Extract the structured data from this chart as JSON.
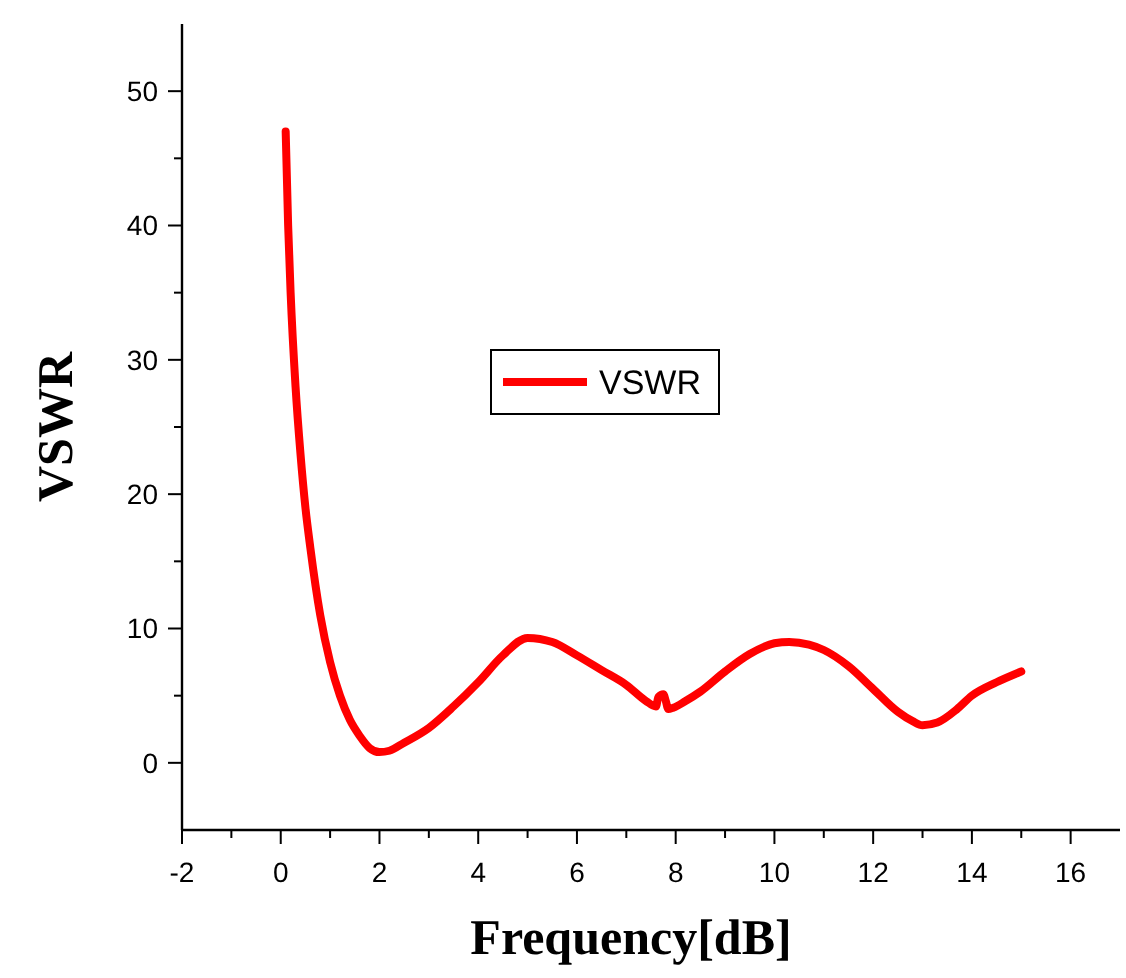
{
  "chart_data": {
    "type": "line",
    "xlabel": "Frequency[dB]",
    "ylabel": "VSWR",
    "xlim": [
      -2,
      17
    ],
    "xticks": [
      -2,
      0,
      2,
      4,
      6,
      8,
      10,
      12,
      14,
      16
    ],
    "ylim": [
      -5,
      55
    ],
    "yticks": [
      0,
      10,
      20,
      30,
      40,
      50
    ],
    "grid": false,
    "legend": "center",
    "marker": "none",
    "line_style": "solid",
    "series": [
      {
        "name": "VSWR",
        "color": "#ff0000",
        "x": [
          0.1,
          0.15,
          0.2,
          0.3,
          0.4,
          0.5,
          0.6,
          0.8,
          1.0,
          1.2,
          1.4,
          1.6,
          1.8,
          2.0,
          2.2,
          2.5,
          3,
          3.5,
          4,
          4.5,
          5,
          5.5,
          6,
          6.5,
          7,
          7.4,
          7.6,
          7.65,
          7.75,
          7.8,
          7.85,
          7.95,
          8.2,
          8.5,
          9,
          9.5,
          10,
          10.3,
          10.7,
          11,
          11.5,
          12,
          12.5,
          12.8,
          13,
          13.3,
          13.7,
          14,
          14.5,
          15
        ],
        "values": [
          47,
          40,
          35,
          28,
          23,
          19,
          16,
          11,
          7.5,
          5,
          3.2,
          2,
          1.1,
          0.8,
          0.9,
          1.5,
          2.6,
          4.2,
          6,
          8,
          9.3,
          9,
          8,
          6.9,
          5.8,
          4.6,
          4.2,
          4.9,
          5.1,
          4.6,
          4,
          4.1,
          4.6,
          5.3,
          6.8,
          8.1,
          8.9,
          9,
          8.8,
          8.4,
          7.2,
          5.5,
          3.8,
          3.1,
          2.8,
          3,
          4,
          5,
          6,
          6.8
        ]
      }
    ]
  }
}
